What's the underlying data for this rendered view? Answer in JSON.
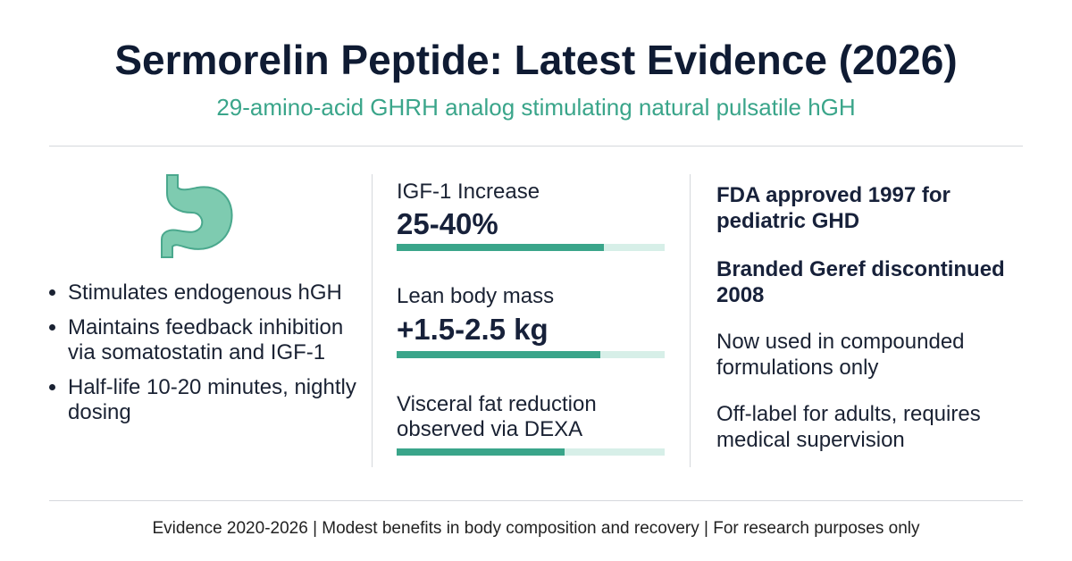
{
  "header": {
    "title": "Sermorelin Peptide: Latest Evidence (2026)",
    "subtitle": "29-amino-acid GHRH analog stimulating natural pulsatile hGH"
  },
  "left": {
    "bullets": [
      "Stimulates endogenous hGH",
      "Maintains feedback inhibition via somatostatin and IGF-1",
      "Half-life 10-20 minutes, nightly dosing"
    ]
  },
  "middle": {
    "stats": [
      {
        "label": "IGF-1 Increase",
        "value": "25-40%"
      },
      {
        "label": "Lean body mass",
        "value": "+1.5-2.5 kg"
      },
      {
        "label": "Visceral fat reduction observed via DEXA"
      }
    ]
  },
  "right": {
    "items": [
      "FDA approved 1997 for pediatric GHD",
      "Branded Geref discontinued 2008",
      "Now used in compounded formulations only",
      "Off-label for adults, requires medical supervision"
    ]
  },
  "footer": "Evidence 2020-2026 | Modest benefits in body composition and recovery | For research purposes only"
}
